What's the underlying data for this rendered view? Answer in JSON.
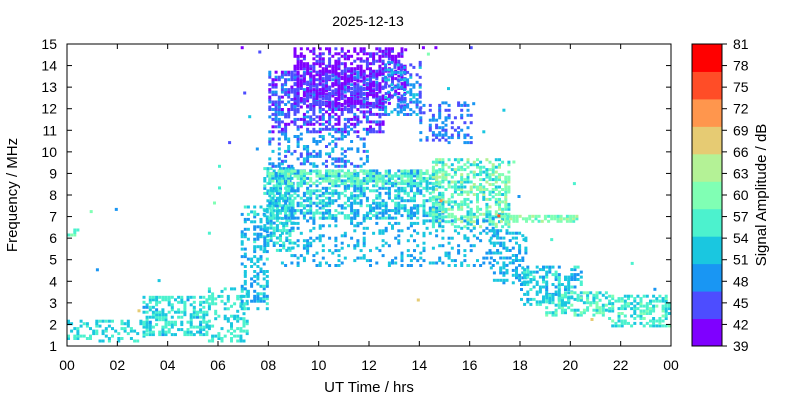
{
  "chart_data": {
    "type": "heatmap",
    "title": "2025-12-13",
    "xlabel": "UT Time / hrs",
    "ylabel": "Frequency / MHz",
    "colorbar_label": "Signal Amplitude / dB",
    "xlim": [
      0,
      24
    ],
    "ylim": [
      1,
      15
    ],
    "x_ticks": [
      "00",
      "02",
      "04",
      "06",
      "08",
      "10",
      "12",
      "14",
      "16",
      "18",
      "20",
      "22",
      "00"
    ],
    "y_ticks": [
      "1",
      "2",
      "3",
      "4",
      "5",
      "6",
      "7",
      "8",
      "9",
      "10",
      "11",
      "12",
      "13",
      "14",
      "15"
    ],
    "colorbar_ticks": [
      "39",
      "42",
      "45",
      "48",
      "51",
      "54",
      "57",
      "60",
      "63",
      "66",
      "69",
      "72",
      "75",
      "78",
      "81"
    ],
    "colorbar_range": [
      39,
      81
    ],
    "colorbar_colors": [
      "#7f00ff",
      "#4d4dff",
      "#1996f3",
      "#1ac7e0",
      "#4cf2ce",
      "#80ffb4",
      "#b4f296",
      "#e6cb73",
      "#ff964d",
      "#ff4d27",
      "#ff0000"
    ],
    "grid": false,
    "regions": [
      {
        "t0": 0.0,
        "t1": 0.4,
        "f0": 6.1,
        "f1": 6.5,
        "amp": [
          53,
          60
        ],
        "density": 0.45
      },
      {
        "t0": 0.0,
        "t1": 3.2,
        "f0": 1.3,
        "f1": 2.3,
        "amp": [
          51,
          57
        ],
        "density": 0.38
      },
      {
        "t0": 3.0,
        "t1": 5.6,
        "f0": 1.6,
        "f1": 3.4,
        "amp": [
          50,
          58
        ],
        "density": 0.5
      },
      {
        "t0": 5.6,
        "t1": 7.2,
        "f0": 1.3,
        "f1": 3.8,
        "amp": [
          51,
          58
        ],
        "density": 0.35
      },
      {
        "t0": 6.9,
        "t1": 8.0,
        "f0": 2.8,
        "f1": 7.6,
        "amp": [
          47,
          55
        ],
        "density": 0.35
      },
      {
        "t0": 7.8,
        "t1": 9.0,
        "f0": 5.5,
        "f1": 9.4,
        "amp": [
          48,
          58
        ],
        "density": 0.55
      },
      {
        "t0": 8.0,
        "t1": 12.6,
        "f0": 11.0,
        "f1": 13.8,
        "amp": [
          41,
          48
        ],
        "density": 0.6
      },
      {
        "t0": 9.0,
        "t1": 13.5,
        "f0": 12.2,
        "f1": 14.9,
        "amp": [
          39,
          45
        ],
        "density": 0.55
      },
      {
        "t0": 8.0,
        "t1": 12.0,
        "f0": 9.4,
        "f1": 11.0,
        "amp": [
          45,
          52
        ],
        "density": 0.3
      },
      {
        "t0": 8.0,
        "t1": 15.0,
        "f0": 7.0,
        "f1": 9.3,
        "amp": [
          47,
          58
        ],
        "density": 0.55
      },
      {
        "t0": 8.0,
        "t1": 15.0,
        "f0": 8.6,
        "f1": 9.2,
        "amp": [
          56,
          62
        ],
        "density": 0.5
      },
      {
        "t0": 12.6,
        "t1": 14.0,
        "f0": 11.8,
        "f1": 14.3,
        "amp": [
          44,
          52
        ],
        "density": 0.45
      },
      {
        "t0": 14.0,
        "t1": 16.1,
        "f0": 10.5,
        "f1": 12.4,
        "amp": [
          44,
          50
        ],
        "density": 0.3
      },
      {
        "t0": 14.5,
        "t1": 17.6,
        "f0": 6.6,
        "f1": 9.8,
        "amp": [
          52,
          64
        ],
        "density": 0.55
      },
      {
        "t0": 8.5,
        "t1": 17.0,
        "f0": 4.8,
        "f1": 7.0,
        "amp": [
          48,
          54
        ],
        "density": 0.2
      },
      {
        "t0": 16.8,
        "t1": 18.2,
        "f0": 4.0,
        "f1": 6.5,
        "amp": [
          48,
          54
        ],
        "density": 0.4
      },
      {
        "t0": 17.2,
        "t1": 20.3,
        "f0": 6.85,
        "f1": 7.1,
        "amp": [
          57,
          63
        ],
        "density": 0.7
      },
      {
        "t0": 18.0,
        "t1": 20.5,
        "f0": 3.0,
        "f1": 4.8,
        "amp": [
          49,
          56
        ],
        "density": 0.45
      },
      {
        "t0": 19.0,
        "t1": 21.5,
        "f0": 2.5,
        "f1": 3.6,
        "amp": [
          52,
          60
        ],
        "density": 0.55
      },
      {
        "t0": 21.5,
        "t1": 24.0,
        "f0": 2.0,
        "f1": 3.4,
        "amp": [
          52,
          59
        ],
        "density": 0.55
      }
    ],
    "isolated_points": [
      {
        "t": 0.9,
        "f": 7.3,
        "amp": 60
      },
      {
        "t": 1.9,
        "f": 7.4,
        "amp": 47
      },
      {
        "t": 1.15,
        "f": 4.6,
        "amp": 49
      },
      {
        "t": 2.8,
        "f": 2.7,
        "amp": 66
      },
      {
        "t": 3.6,
        "f": 4.1,
        "amp": 54
      },
      {
        "t": 5.6,
        "f": 6.3,
        "amp": 56
      },
      {
        "t": 5.8,
        "f": 7.7,
        "amp": 60
      },
      {
        "t": 6.0,
        "f": 8.4,
        "amp": 55
      },
      {
        "t": 6.0,
        "f": 9.4,
        "amp": 57
      },
      {
        "t": 6.4,
        "f": 10.5,
        "amp": 46
      },
      {
        "t": 6.9,
        "f": 14.9,
        "amp": 41
      },
      {
        "t": 7.0,
        "f": 12.8,
        "amp": 44
      },
      {
        "t": 7.2,
        "f": 11.7,
        "amp": 51
      },
      {
        "t": 7.5,
        "f": 10.2,
        "amp": 48
      },
      {
        "t": 7.6,
        "f": 14.7,
        "amp": 44
      },
      {
        "t": 14.6,
        "f": 14.9,
        "amp": 42
      },
      {
        "t": 14.3,
        "f": 14.6,
        "amp": 59
      },
      {
        "t": 15.1,
        "f": 13.0,
        "amp": 54
      },
      {
        "t": 16.1,
        "f": 12.3,
        "amp": 48
      },
      {
        "t": 16.0,
        "f": 14.9,
        "amp": 45
      },
      {
        "t": 17.3,
        "f": 12.0,
        "amp": 54
      },
      {
        "t": 16.5,
        "f": 11.0,
        "amp": 53
      },
      {
        "t": 17.7,
        "f": 9.6,
        "amp": 60
      },
      {
        "t": 17.9,
        "f": 8.0,
        "amp": 50
      },
      {
        "t": 20.1,
        "f": 8.6,
        "amp": 57
      },
      {
        "t": 19.2,
        "f": 6.0,
        "amp": 57
      },
      {
        "t": 18.1,
        "f": 6.0,
        "amp": 52
      },
      {
        "t": 20.8,
        "f": 2.3,
        "amp": 68
      },
      {
        "t": 22.4,
        "f": 4.9,
        "amp": 56
      },
      {
        "t": 23.3,
        "f": 3.7,
        "amp": 50
      },
      {
        "t": 13.9,
        "f": 3.2,
        "amp": 69
      },
      {
        "t": 15.9,
        "f": 4.8,
        "amp": 55
      },
      {
        "t": 14.8,
        "f": 7.8,
        "amp": 72
      },
      {
        "t": 17.1,
        "f": 7.1,
        "amp": 75
      },
      {
        "t": 14.1,
        "f": 14.9,
        "amp": 39
      },
      {
        "t": 13.4,
        "f": 14.8,
        "amp": 41
      }
    ]
  }
}
